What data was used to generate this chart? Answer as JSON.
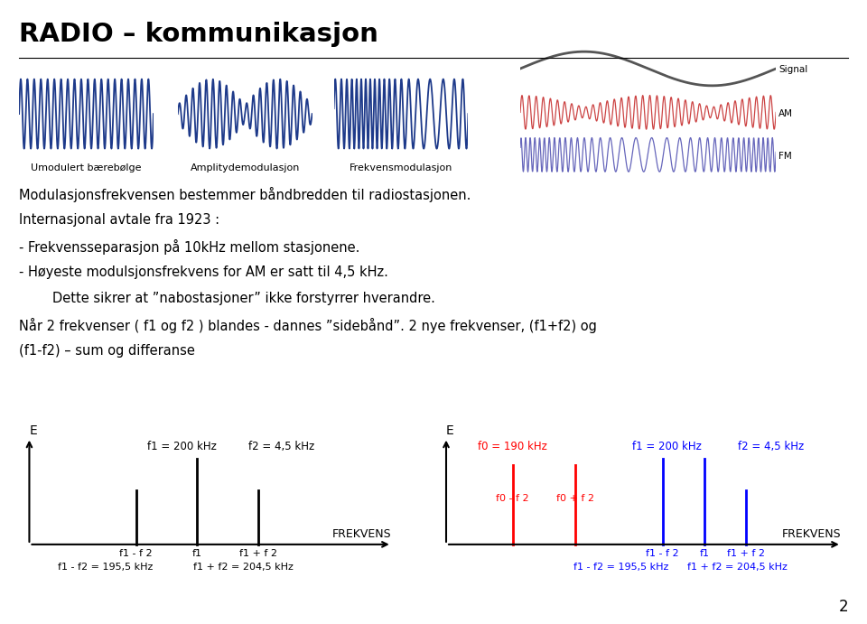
{
  "title": "RADIO – kommunikasjon",
  "text_lines": [
    {
      "text": "Modulasjonsfrekvensen bestemmer båndbredden til radiostasjonen.",
      "indent": 0
    },
    {
      "text": "Internasjonal avtale fra 1923 :",
      "indent": 0
    },
    {
      "text": "- Frekvensseparasjon på 10kHz mellom stasjonene.",
      "indent": 0
    },
    {
      "text": "- Høyeste modulsjonsfrekvens for AM er satt til 4,5 kHz.",
      "indent": 0
    },
    {
      "text": "        Dette sikrer at ”nabostasjoner” ikke forstyrrer hverandre.",
      "indent": 0
    },
    {
      "text": "Når 2 frekvenser ( f1 og f2 ) blandes - dannes ”sidebånd”. 2 nye frekvenser, (f1+f2) og",
      "indent": 0
    },
    {
      "text": "(f1-f2) – sum og differanse",
      "indent": 0
    }
  ],
  "wave_labels": [
    "Umodulert bærebølge",
    "Amplitydemodulasjon",
    "Frekvensmodulasjon"
  ],
  "right_labels": [
    "Signal",
    "AM",
    "FM"
  ],
  "page_number": "2",
  "bg_color": "#ffffff",
  "wave_color": "#1e3a8a",
  "am_color": "#cc4444",
  "fm_color": "#6666bb",
  "signal_color": "#555555"
}
